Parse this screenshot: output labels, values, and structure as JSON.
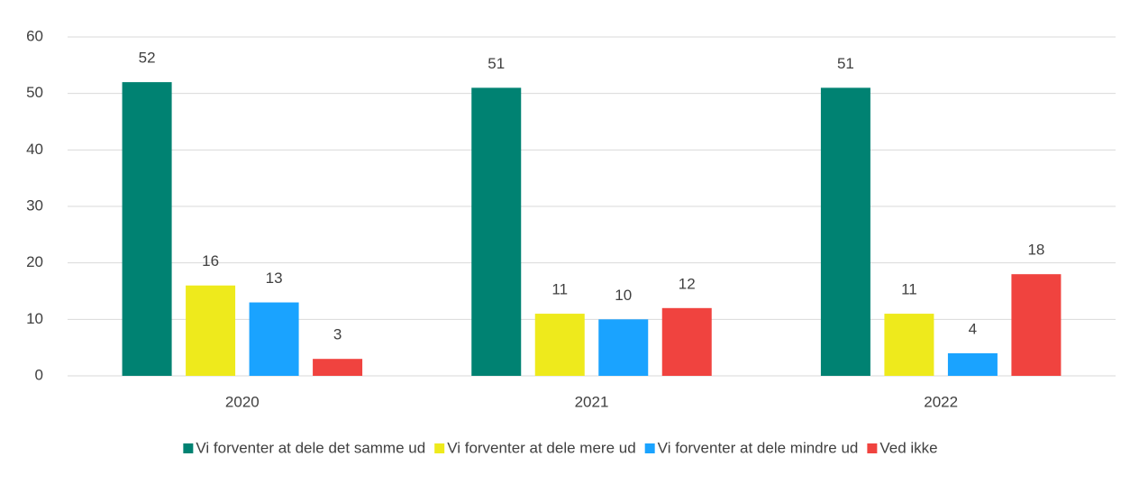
{
  "chart_data": {
    "type": "bar",
    "categories": [
      "2020",
      "2021",
      "2022"
    ],
    "series": [
      {
        "name": "Vi forventer at dele det samme ud",
        "color": "#008272",
        "values": [
          52,
          51,
          51
        ]
      },
      {
        "name": "Vi forventer at dele mere ud",
        "color": "#eeea1c",
        "values": [
          16,
          11,
          11
        ]
      },
      {
        "name": "Vi forventer at dele mindre ud",
        "color": "#1aa3ff",
        "values": [
          13,
          10,
          4
        ]
      },
      {
        "name": "Ved ikke",
        "color": "#f0433f",
        "values": [
          3,
          12,
          18
        ]
      }
    ],
    "ylim": [
      0,
      60
    ],
    "yticks": [
      0,
      10,
      20,
      30,
      40,
      50,
      60
    ],
    "grid": true,
    "legend": "bottom"
  }
}
